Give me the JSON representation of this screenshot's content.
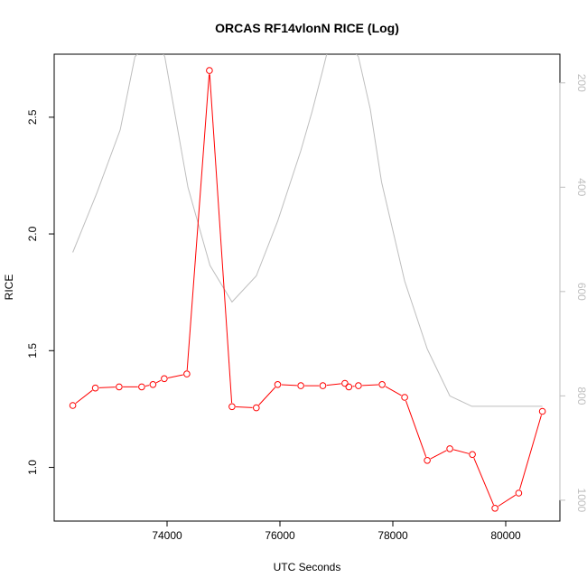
{
  "chart_data": {
    "type": "line",
    "title": "ORCAS RF14vlonN RICE (Log)",
    "xlabel": "UTC Seconds",
    "ylabel": "RICE",
    "xlim": [
      72000,
      80960
    ],
    "ylim": [
      0.77,
      2.77
    ],
    "y2lim": [
      1040,
      145
    ],
    "y2_reversed": true,
    "grid": false,
    "legend": "none",
    "x_ticks": [
      74000,
      76000,
      78000,
      80000
    ],
    "x_tick_labels": [
      "74000",
      "76000",
      "78000",
      "80000"
    ],
    "y_ticks": [
      1.0,
      1.5,
      2.0,
      2.5
    ],
    "y_tick_labels": [
      "1.0",
      "1.5",
      "2.0",
      "2.5"
    ],
    "y2_ticks": [
      200,
      400,
      600,
      800,
      1000
    ],
    "y2_tick_labels": [
      "200",
      "400",
      "600",
      "800",
      "1000"
    ],
    "colors": {
      "primary": "#ff0000",
      "secondary": "#bebebe",
      "axis": "#000000"
    },
    "series": [
      {
        "axis": "left",
        "marker": "open-circle",
        "x": [
          72330,
          72730,
          73150,
          73550,
          73750,
          73950,
          74350,
          74750,
          75150,
          75580,
          75960,
          76370,
          76760,
          77150,
          77220,
          77390,
          77810,
          78210,
          78610,
          79010,
          79410,
          79810,
          80230,
          80650
        ],
        "values": [
          1.265,
          1.34,
          1.345,
          1.345,
          1.355,
          1.38,
          1.4,
          2.7,
          1.26,
          1.255,
          1.355,
          1.35,
          1.35,
          1.36,
          1.345,
          1.35,
          1.355,
          1.3,
          1.03,
          1.08,
          1.055,
          0.825,
          0.89,
          1.24
        ]
      },
      {
        "axis": "right",
        "marker": "none",
        "x": [
          72330,
          72760,
          73170,
          73430,
          73770,
          73960,
          74370,
          74760,
          75150,
          75580,
          75960,
          76370,
          76570,
          76760,
          76840,
          77170,
          77220,
          77390,
          77600,
          77800,
          78210,
          78610,
          79010,
          79400,
          80650
        ],
        "values": [
          525,
          410,
          290,
          150,
          110,
          150,
          400,
          550,
          620,
          570,
          465,
          330,
          255,
          175,
          140,
          120,
          125,
          150,
          250,
          390,
          580,
          710,
          800,
          820,
          820
        ]
      }
    ]
  }
}
